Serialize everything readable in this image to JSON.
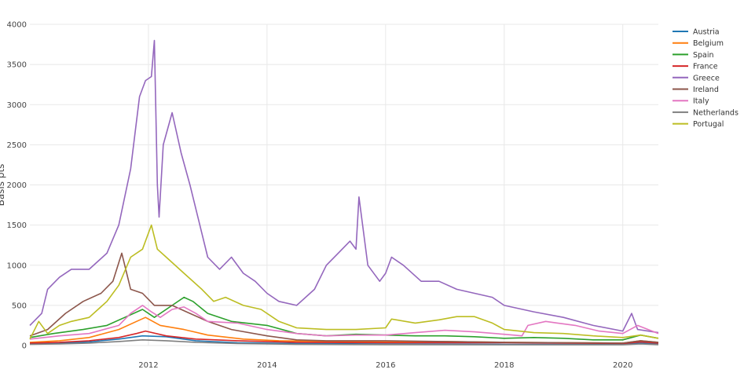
{
  "chart_data": {
    "type": "line",
    "title": "",
    "xlabel": "",
    "ylabel": "Basis pts",
    "x_range": [
      2010.0,
      2020.6
    ],
    "ylim": [
      0,
      4000
    ],
    "x_ticks": [
      2012,
      2014,
      2016,
      2018,
      2020
    ],
    "y_ticks": [
      0,
      500,
      1000,
      1500,
      2000,
      2500,
      3000,
      3500,
      4000
    ],
    "grid": true,
    "legend_position": "right",
    "series": [
      {
        "name": "Austria",
        "color": "#1f77b4",
        "x": [
          2010.0,
          2010.5,
          2011.0,
          2011.5,
          2011.9,
          2012.3,
          2012.8,
          2013.5,
          2014.5,
          2016.0,
          2018.0,
          2020.0,
          2020.3,
          2020.6
        ],
        "y": [
          20,
          30,
          45,
          80,
          120,
          110,
          60,
          35,
          25,
          20,
          15,
          15,
          30,
          20
        ]
      },
      {
        "name": "Belgium",
        "color": "#ff7f0e",
        "x": [
          2010.0,
          2010.5,
          2011.0,
          2011.5,
          2011.8,
          2011.95,
          2012.2,
          2012.6,
          2013.0,
          2013.6,
          2014.2,
          2015.0,
          2016.0,
          2017.0,
          2018.0,
          2019.0,
          2020.0,
          2020.3,
          2020.6
        ],
        "y": [
          40,
          60,
          100,
          200,
          300,
          350,
          250,
          200,
          130,
          80,
          60,
          50,
          45,
          50,
          40,
          35,
          30,
          60,
          40
        ]
      },
      {
        "name": "Spain",
        "color": "#2ca02c",
        "x": [
          2010.0,
          2010.4,
          2010.9,
          2011.3,
          2011.6,
          2011.9,
          2012.1,
          2012.4,
          2012.6,
          2012.75,
          2013.0,
          2013.4,
          2014.0,
          2014.5,
          2015.0,
          2015.5,
          2016.0,
          2016.5,
          2017.0,
          2017.5,
          2018.0,
          2018.5,
          2019.0,
          2019.5,
          2020.0,
          2020.3,
          2020.6
        ],
        "y": [
          100,
          150,
          200,
          250,
          350,
          450,
          350,
          500,
          600,
          550,
          400,
          300,
          250,
          150,
          120,
          140,
          130,
          120,
          120,
          110,
          90,
          100,
          90,
          70,
          70,
          130,
          90
        ]
      },
      {
        "name": "France",
        "color": "#d62728",
        "x": [
          2010.0,
          2010.5,
          2011.0,
          2011.5,
          2011.8,
          2011.95,
          2012.3,
          2012.8,
          2013.5,
          2014.5,
          2016.0,
          2018.0,
          2019.0,
          2020.0,
          2020.3,
          2020.6
        ],
        "y": [
          30,
          40,
          60,
          100,
          150,
          180,
          120,
          80,
          60,
          40,
          35,
          35,
          30,
          25,
          45,
          30
        ]
      },
      {
        "name": "Greece",
        "color": "#9467bd",
        "x": [
          2010.0,
          2010.2,
          2010.3,
          2010.5,
          2010.7,
          2011.0,
          2011.3,
          2011.5,
          2011.7,
          2011.85,
          2011.95,
          2012.05,
          2012.1,
          2012.15,
          2012.18,
          2012.25,
          2012.4,
          2012.55,
          2012.7,
          2012.9,
          2013.0,
          2013.2,
          2013.4,
          2013.6,
          2013.8,
          2014.0,
          2014.2,
          2014.5,
          2014.8,
          2015.0,
          2015.2,
          2015.4,
          2015.5,
          2015.55,
          2015.7,
          2015.9,
          2016.0,
          2016.1,
          2016.3,
          2016.6,
          2016.9,
          2017.2,
          2017.5,
          2017.8,
          2018.0,
          2018.5,
          2019.0,
          2019.5,
          2020.0,
          2020.15,
          2020.25,
          2020.6
        ],
        "y": [
          250,
          400,
          700,
          850,
          950,
          950,
          1150,
          1500,
          2200,
          3100,
          3300,
          3350,
          3800,
          2000,
          1600,
          2500,
          2900,
          2400,
          2000,
          1400,
          1100,
          950,
          1100,
          900,
          800,
          650,
          550,
          500,
          700,
          1000,
          1150,
          1300,
          1200,
          1850,
          1000,
          800,
          900,
          1100,
          1000,
          800,
          800,
          700,
          650,
          600,
          500,
          420,
          350,
          250,
          180,
          400,
          200,
          160
        ]
      },
      {
        "name": "Ireland",
        "color": "#8c564b",
        "x": [
          2010.0,
          2010.3,
          2010.6,
          2010.9,
          2011.2,
          2011.4,
          2011.55,
          2011.7,
          2011.9,
          2012.1,
          2012.4,
          2012.7,
          2013.0,
          2013.4,
          2014.0,
          2014.5,
          2015.0,
          2016.0,
          2017.0,
          2018.0,
          2019.0,
          2020.0,
          2020.3,
          2020.6
        ],
        "y": [
          120,
          200,
          400,
          550,
          650,
          800,
          1150,
          700,
          650,
          500,
          500,
          400,
          300,
          200,
          120,
          70,
          60,
          60,
          50,
          40,
          35,
          30,
          60,
          40
        ]
      },
      {
        "name": "Italy",
        "color": "#e377c2",
        "x": [
          2010.0,
          2010.5,
          2011.0,
          2011.5,
          2011.7,
          2011.9,
          2012.05,
          2012.2,
          2012.4,
          2012.6,
          2012.8,
          2013.0,
          2013.5,
          2014.0,
          2014.5,
          2015.0,
          2015.5,
          2016.0,
          2016.5,
          2017.0,
          2017.5,
          2018.0,
          2018.3,
          2018.4,
          2018.7,
          2018.9,
          2019.2,
          2019.6,
          2020.0,
          2020.25,
          2020.6
        ],
        "y": [
          80,
          120,
          150,
          250,
          400,
          500,
          420,
          350,
          450,
          480,
          400,
          300,
          280,
          200,
          150,
          120,
          130,
          130,
          160,
          190,
          170,
          140,
          120,
          250,
          300,
          280,
          250,
          180,
          150,
          250,
          150
        ]
      },
      {
        "name": "Netherlands",
        "color": "#7f7f7f",
        "x": [
          2010.0,
          2010.5,
          2011.0,
          2011.5,
          2011.9,
          2012.3,
          2012.8,
          2013.5,
          2014.5,
          2016.0,
          2018.0,
          2020.0,
          2020.3,
          2020.6
        ],
        "y": [
          15,
          20,
          30,
          50,
          70,
          60,
          40,
          25,
          15,
          12,
          10,
          10,
          20,
          12
        ]
      },
      {
        "name": "Portugal",
        "color": "#bcbd22",
        "x": [
          2010.0,
          2010.15,
          2010.3,
          2010.5,
          2010.7,
          2011.0,
          2011.3,
          2011.5,
          2011.7,
          2011.9,
          2012.05,
          2012.15,
          2012.3,
          2012.6,
          2012.9,
          2013.1,
          2013.3,
          2013.6,
          2013.9,
          2014.2,
          2014.5,
          2015.0,
          2015.5,
          2016.0,
          2016.1,
          2016.5,
          2016.9,
          2017.2,
          2017.5,
          2017.8,
          2018.0,
          2018.5,
          2019.0,
          2019.5,
          2020.0,
          2020.3,
          2020.6
        ],
        "y": [
          80,
          300,
          150,
          250,
          300,
          350,
          550,
          750,
          1100,
          1200,
          1500,
          1200,
          1100,
          900,
          700,
          550,
          600,
          500,
          450,
          300,
          220,
          200,
          200,
          220,
          330,
          280,
          320,
          360,
          360,
          280,
          200,
          160,
          150,
          120,
          100,
          130,
          90
        ]
      }
    ]
  }
}
